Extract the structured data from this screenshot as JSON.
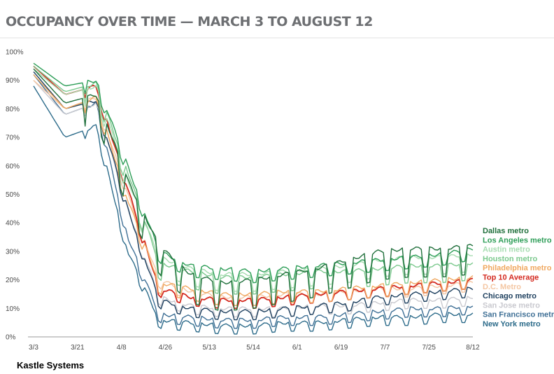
{
  "header": {
    "title": "OCCUPANCY OVER TIME — MARCH 3 TO AUGUST 12"
  },
  "footer": {
    "source": "Kastle Systems"
  },
  "chart_data": {
    "type": "line",
    "title": "OCCUPANCY OVER TIME — MARCH 3 TO AUGUST 12",
    "xlabel": "",
    "ylabel": "",
    "x_ticks": [
      "3/3",
      "3/21",
      "4/8",
      "4/26",
      "5/13",
      "5/14",
      "6/1",
      "6/19",
      "7/7",
      "7/25",
      "8/12"
    ],
    "y_ticks": [
      "0%",
      "10%",
      "20%",
      "30%",
      "40%",
      "50%",
      "60%",
      "70%",
      "80%",
      "90%",
      "100%"
    ],
    "ylim": [
      0,
      100
    ],
    "grid": false,
    "legend_position": "right",
    "start_date": "2020-03-03",
    "series": [
      {
        "name": "Dallas metro",
        "color": "#1f6f3b",
        "level": 30,
        "weekend_drop": 10,
        "values": [
          94,
          82,
          85,
          55,
          32,
          22,
          19,
          20,
          22,
          24,
          27,
          30,
          31,
          31,
          32
        ]
      },
      {
        "name": "Los Angeles metro",
        "color": "#2e9e58",
        "level": 30,
        "weekend_drop": 4,
        "values": [
          96,
          88,
          90,
          60,
          30,
          25,
          24,
          23,
          24,
          25,
          26,
          27,
          28,
          29,
          31
        ]
      },
      {
        "name": "Austin metro",
        "color": "#a6dcb0",
        "level": 27,
        "weekend_drop": 6,
        "values": [
          94,
          85,
          88,
          55,
          28,
          24,
          22,
          22,
          23,
          24,
          25,
          27,
          28,
          28,
          29
        ]
      },
      {
        "name": "Houston metro",
        "color": "#7cc98e",
        "level": 25,
        "weekend_drop": 6,
        "values": [
          95,
          86,
          89,
          58,
          26,
          23,
          21,
          21,
          22,
          23,
          23,
          24,
          25,
          25,
          26
        ]
      },
      {
        "name": "Philadelphia metro",
        "color": "#f0a860",
        "level": 20,
        "weekend_drop": 4,
        "values": [
          92,
          80,
          84,
          48,
          19,
          17,
          15,
          15,
          16,
          16,
          17,
          18,
          19,
          20,
          21
        ]
      },
      {
        "name": "Top 10 Average",
        "color": "#d42a20",
        "level": 20,
        "weekend_drop": 3,
        "values": [
          95,
          85,
          88,
          52,
          17,
          14,
          13,
          13,
          14,
          15,
          16,
          17,
          18,
          19,
          20
        ]
      },
      {
        "name": "D.C. Metro",
        "color": "#f4c6a2",
        "level": 17,
        "weekend_drop": 3,
        "values": [
          90,
          80,
          84,
          50,
          20,
          16,
          14,
          14,
          15,
          15,
          16,
          17,
          17,
          18,
          19
        ]
      },
      {
        "name": "Chicago metro",
        "color": "#1d3f5e",
        "level": 17,
        "weekend_drop": 3,
        "values": [
          93,
          80,
          83,
          45,
          13,
          10,
          9,
          9,
          10,
          11,
          12,
          14,
          15,
          16,
          17
        ]
      },
      {
        "name": "San Jose metro",
        "color": "#c9c9cf",
        "level": 14,
        "weekend_drop": 3,
        "values": [
          90,
          78,
          82,
          45,
          14,
          11,
          10,
          10,
          10,
          11,
          11,
          12,
          13,
          13,
          14
        ]
      },
      {
        "name": "San Francisco metro",
        "color": "#3e6f95",
        "level": 11,
        "weekend_drop": 3,
        "values": [
          92,
          78,
          82,
          35,
          8,
          7,
          6,
          6,
          7,
          7,
          8,
          9,
          10,
          10,
          11
        ]
      },
      {
        "name": "New York metro",
        "color": "#2c6b8a",
        "level": 8,
        "weekend_drop": 3,
        "values": [
          88,
          70,
          74,
          30,
          6,
          5,
          4,
          4,
          5,
          5,
          6,
          7,
          7,
          8,
          8
        ]
      }
    ]
  }
}
